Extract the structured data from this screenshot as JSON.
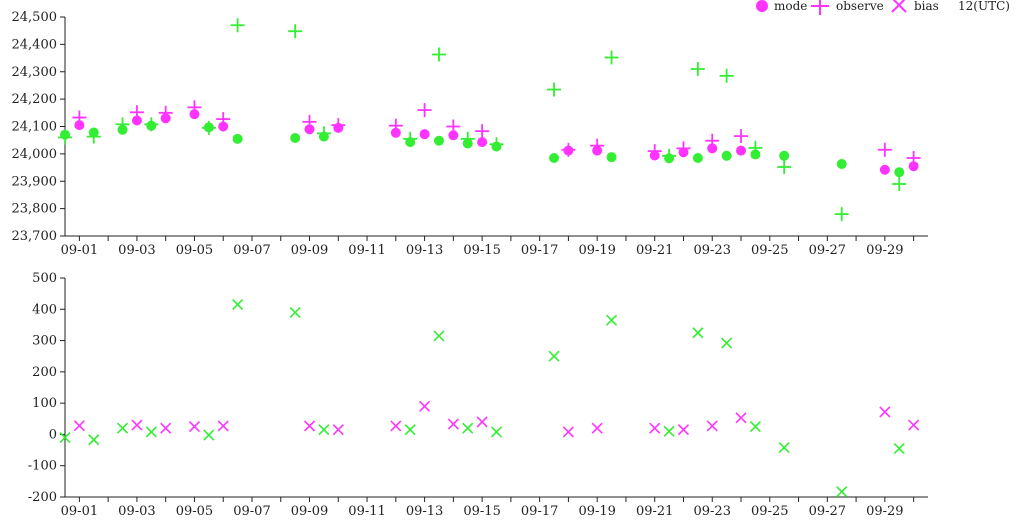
{
  "colors": {
    "mode": "#ff33ff",
    "observe": "#ff33ff",
    "bias_pos": "#ff33ff",
    "bias_neg": "#33ee33",
    "axis": "#222222"
  },
  "legend": {
    "mode_label": "mode",
    "observe_label": "observe",
    "bias_label": "bias",
    "time_label": "12(UTC)"
  },
  "chart_data": [
    {
      "type": "scatter",
      "title": "",
      "xlabel": "",
      "ylabel": "",
      "x_ticks": [
        "09-01",
        "09-03",
        "09-05",
        "09-07",
        "09-09",
        "09-11",
        "09-13",
        "09-15",
        "09-17",
        "09-19",
        "09-21",
        "09-23",
        "09-25",
        "09-27",
        "09-29"
      ],
      "x_range": [
        0.5,
        30.5
      ],
      "ylim": [
        23700,
        24500
      ],
      "y_ticks": [
        "23,700",
        "23,800",
        "23,900",
        "24,000",
        "24,100",
        "24,200",
        "24,300",
        "24,400",
        "24,500"
      ],
      "y_tick_values": [
        23700,
        23800,
        23900,
        24000,
        24100,
        24200,
        24300,
        24400,
        24500
      ],
      "series": [
        {
          "name": "mode",
          "marker": "circle",
          "points": [
            [
              0.5,
              24070,
              "g"
            ],
            [
              1.0,
              24105,
              "m"
            ],
            [
              1.5,
              24078,
              "g"
            ],
            [
              2.5,
              24088,
              "g"
            ],
            [
              3.0,
              24122,
              "m"
            ],
            [
              3.5,
              24103,
              "g"
            ],
            [
              4.0,
              24130,
              "m"
            ],
            [
              5.0,
              24145,
              "m"
            ],
            [
              5.5,
              24097,
              "g"
            ],
            [
              6.0,
              24100,
              "m"
            ],
            [
              6.5,
              24055,
              "g"
            ],
            [
              8.5,
              24058,
              "g"
            ],
            [
              9.0,
              24090,
              "m"
            ],
            [
              9.5,
              24063,
              "g"
            ],
            [
              10.0,
              24095,
              "m"
            ],
            [
              12.0,
              24077,
              "m"
            ],
            [
              12.5,
              24043,
              "g"
            ],
            [
              13.0,
              24072,
              "m"
            ],
            [
              13.5,
              24048,
              "g"
            ],
            [
              14.0,
              24068,
              "m"
            ],
            [
              14.5,
              24038,
              "g"
            ],
            [
              15.0,
              24043,
              "m"
            ],
            [
              15.5,
              24027,
              "g"
            ],
            [
              17.5,
              23985,
              "g"
            ],
            [
              18.0,
              24012,
              "m"
            ],
            [
              19.0,
              24012,
              "m"
            ],
            [
              19.5,
              23988,
              "g"
            ],
            [
              21.0,
              23994,
              "m"
            ],
            [
              21.5,
              23984,
              "g"
            ],
            [
              22.0,
              24006,
              "m"
            ],
            [
              22.5,
              23985,
              "g"
            ],
            [
              23.0,
              24020,
              "m"
            ],
            [
              23.5,
              23993,
              "g"
            ],
            [
              24.0,
              24012,
              "m"
            ],
            [
              24.5,
              23998,
              "g"
            ],
            [
              25.5,
              23993,
              "g"
            ],
            [
              27.5,
              23963,
              "g"
            ],
            [
              29.0,
              23942,
              "m"
            ],
            [
              29.5,
              23933,
              "g"
            ],
            [
              30.0,
              23955,
              "m"
            ]
          ]
        },
        {
          "name": "observe",
          "marker": "plus",
          "points": [
            [
              0.5,
              24060,
              "g"
            ],
            [
              1.0,
              24133,
              "m"
            ],
            [
              1.5,
              24063,
              "g"
            ],
            [
              2.5,
              24108,
              "g"
            ],
            [
              3.0,
              24152,
              "m"
            ],
            [
              3.5,
              24108,
              "g"
            ],
            [
              4.0,
              24150,
              "m"
            ],
            [
              5.0,
              24170,
              "m"
            ],
            [
              5.5,
              24095,
              "g"
            ],
            [
              6.0,
              24127,
              "m"
            ],
            [
              6.5,
              24470,
              "g"
            ],
            [
              8.5,
              24448,
              "g"
            ],
            [
              9.0,
              24117,
              "m"
            ],
            [
              9.5,
              24075,
              "g"
            ],
            [
              10.0,
              24105,
              "m"
            ],
            [
              12.0,
              24103,
              "m"
            ],
            [
              12.5,
              24055,
              "g"
            ],
            [
              13.0,
              24160,
              "m"
            ],
            [
              13.5,
              24363,
              "g"
            ],
            [
              14.0,
              24100,
              "m"
            ],
            [
              14.5,
              24055,
              "g"
            ],
            [
              15.0,
              24083,
              "m"
            ],
            [
              15.5,
              24035,
              "g"
            ],
            [
              17.5,
              24235,
              "g"
            ],
            [
              18.0,
              24015,
              "m"
            ],
            [
              19.0,
              24030,
              "m"
            ],
            [
              19.5,
              24352,
              "g"
            ],
            [
              21.0,
              24010,
              "m"
            ],
            [
              21.5,
              23993,
              "g"
            ],
            [
              22.0,
              24020,
              "m"
            ],
            [
              22.5,
              24310,
              "g"
            ],
            [
              23.0,
              24048,
              "m"
            ],
            [
              23.5,
              24285,
              "g"
            ],
            [
              24.0,
              24065,
              "m"
            ],
            [
              24.5,
              24022,
              "g"
            ],
            [
              25.5,
              23952,
              "g"
            ],
            [
              27.5,
              23780,
              "g"
            ],
            [
              29.0,
              24015,
              "m"
            ],
            [
              29.5,
              23890,
              "g"
            ],
            [
              30.0,
              23985,
              "m"
            ]
          ]
        }
      ]
    },
    {
      "type": "scatter",
      "title": "",
      "xlabel": "",
      "ylabel": "",
      "x_ticks": [
        "09-01",
        "09-03",
        "09-05",
        "09-07",
        "09-09",
        "09-11",
        "09-13",
        "09-15",
        "09-17",
        "09-19",
        "09-21",
        "09-23",
        "09-25",
        "09-27",
        "09-29"
      ],
      "x_range": [
        0.5,
        30.5
      ],
      "ylim": [
        -200,
        500
      ],
      "y_ticks": [
        "-200",
        "-100",
        "0",
        "100",
        "200",
        "300",
        "400",
        "500"
      ],
      "y_tick_values": [
        -200,
        -100,
        0,
        100,
        200,
        300,
        400,
        500
      ],
      "series": [
        {
          "name": "bias",
          "marker": "x",
          "points": [
            [
              0.5,
              -10,
              "g"
            ],
            [
              1.0,
              28,
              "m"
            ],
            [
              1.5,
              -17,
              "g"
            ],
            [
              2.5,
              20,
              "g"
            ],
            [
              3.0,
              30,
              "m"
            ],
            [
              3.5,
              8,
              "g"
            ],
            [
              4.0,
              20,
              "m"
            ],
            [
              5.0,
              25,
              "m"
            ],
            [
              5.5,
              -2,
              "g"
            ],
            [
              6.0,
              27,
              "m"
            ],
            [
              6.5,
              415,
              "g"
            ],
            [
              8.5,
              390,
              "g"
            ],
            [
              9.0,
              27,
              "m"
            ],
            [
              9.5,
              15,
              "g"
            ],
            [
              10.0,
              15,
              "m"
            ],
            [
              12.0,
              27,
              "m"
            ],
            [
              12.5,
              15,
              "g"
            ],
            [
              13.0,
              90,
              "m"
            ],
            [
              13.5,
              315,
              "g"
            ],
            [
              14.0,
              33,
              "m"
            ],
            [
              14.5,
              20,
              "g"
            ],
            [
              15.0,
              40,
              "m"
            ],
            [
              15.5,
              8,
              "g"
            ],
            [
              17.5,
              250,
              "g"
            ],
            [
              18.0,
              8,
              "m"
            ],
            [
              19.0,
              20,
              "m"
            ],
            [
              19.5,
              365,
              "g"
            ],
            [
              21.0,
              20,
              "m"
            ],
            [
              21.5,
              10,
              "g"
            ],
            [
              22.0,
              15,
              "m"
            ],
            [
              22.5,
              325,
              "g"
            ],
            [
              23.0,
              27,
              "m"
            ],
            [
              23.5,
              292,
              "g"
            ],
            [
              24.0,
              53,
              "m"
            ],
            [
              24.5,
              25,
              "g"
            ],
            [
              25.5,
              -42,
              "g"
            ],
            [
              27.5,
              -183,
              "g"
            ],
            [
              29.0,
              72,
              "m"
            ],
            [
              29.5,
              -45,
              "g"
            ],
            [
              30.0,
              30,
              "m"
            ]
          ]
        }
      ]
    }
  ]
}
